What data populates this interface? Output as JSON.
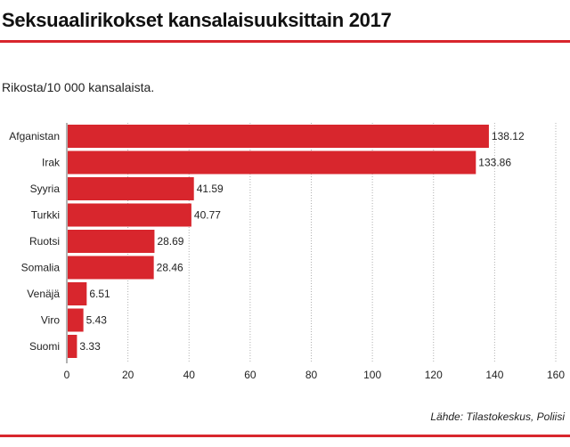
{
  "header": {
    "title": "Seksuaalirikokset kansalaisuuksittain 2017",
    "subtitle": "Rikosta/10 000 kansalaista."
  },
  "footer": {
    "source": "Lähde: Tilastokeskus, Poliisi"
  },
  "colors": {
    "bar": "#d8262d",
    "rule": "#d8262d",
    "grid": "#b0b0b0"
  },
  "chart_data": {
    "type": "bar",
    "orientation": "horizontal",
    "title": "Seksuaalirikokset kansalaisuuksittain 2017",
    "subtitle": "Rikosta/10 000 kansalaista.",
    "categories": [
      "Afganistan",
      "Irak",
      "Syyria",
      "Turkki",
      "Ruotsi",
      "Somalia",
      "Venäjä",
      "Viro",
      "Suomi"
    ],
    "values": [
      138.12,
      133.86,
      41.59,
      40.77,
      28.69,
      28.46,
      6.51,
      5.43,
      3.33
    ],
    "value_labels": [
      "138.12",
      "133.86",
      "41.59",
      "40.77",
      "28.69",
      "28.46",
      "6.51",
      "5.43",
      "3.33"
    ],
    "xlim": [
      0,
      160
    ],
    "xticks": [
      "0",
      "20",
      "40",
      "60",
      "80",
      "100",
      "120",
      "140",
      "160"
    ],
    "xlabel": "",
    "ylabel": "",
    "grid": "vertical dotted",
    "source": "Lähde: Tilastokeskus, Poliisi"
  }
}
